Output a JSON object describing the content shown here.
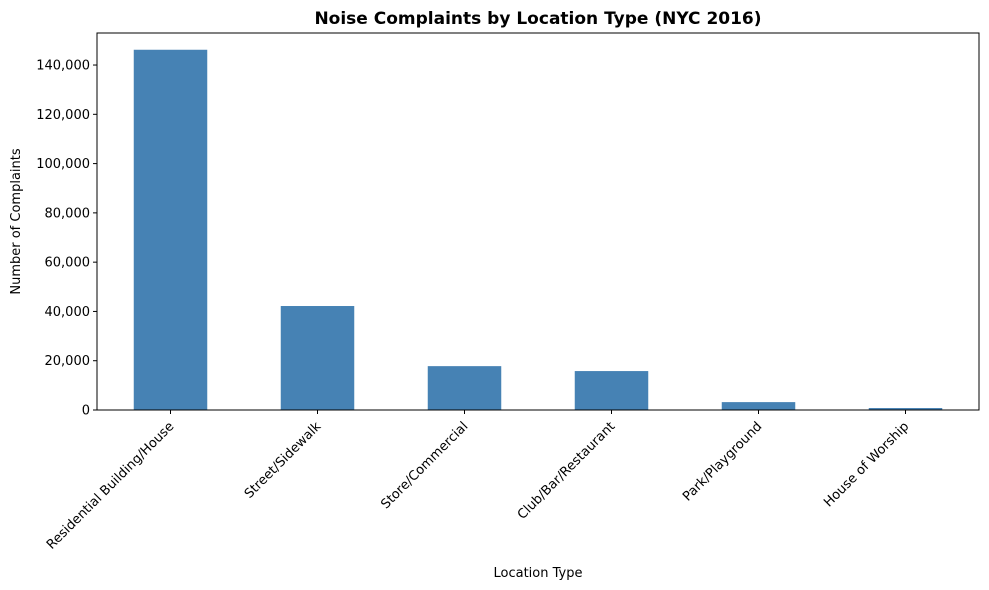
{
  "chart_data": {
    "type": "bar",
    "title": "Noise Complaints by Location Type (NYC 2016)",
    "xlabel": "Location Type",
    "ylabel": "Number of Complaints",
    "categories": [
      "Residential Building/House",
      "Street/Sidewalk",
      "Store/Commercial",
      "Club/Bar/Restaurant",
      "Park/Playground",
      "House of Worship"
    ],
    "values": [
      146200,
      42200,
      17800,
      15800,
      3200,
      800
    ],
    "ylim": [
      0,
      153000
    ],
    "yticks": [
      0,
      20000,
      40000,
      60000,
      80000,
      100000,
      120000,
      140000
    ],
    "ytick_labels": [
      "0",
      "20,000",
      "40,000",
      "60,000",
      "80,000",
      "100,000",
      "120,000",
      "140,000"
    ],
    "bar_color": "#4682b4",
    "grid": false,
    "legend": "none"
  }
}
